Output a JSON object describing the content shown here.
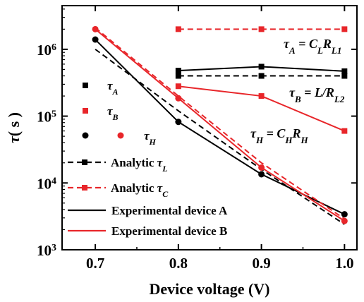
{
  "chart_data": {
    "type": "line",
    "y_scale": "log",
    "x_ticks": [
      "0.7",
      "0.8",
      "0.9",
      "1.0"
    ],
    "y_ticks": [
      {
        "value": 1000,
        "label_base": "10",
        "label_exp": "3"
      },
      {
        "value": 10000,
        "label_base": "10",
        "label_exp": "4"
      },
      {
        "value": 100000,
        "label_base": "10",
        "label_exp": "5"
      },
      {
        "value": 1000000,
        "label_base": "10",
        "label_exp": "6"
      }
    ],
    "xlim": [
      0.66,
      1.015
    ],
    "ylim": [
      1000,
      4500000
    ],
    "xlabel": "Device voltage (V)",
    "ylabel": {
      "symbol": "τ",
      "unit": "( s )"
    },
    "grid": false,
    "colors": {
      "black": "#000000",
      "red": "#e8262a"
    },
    "series": [
      {
        "key": "expA_tauH",
        "color": "black",
        "dash": false,
        "marker": "circle",
        "x": [
          0.7,
          0.8,
          0.9,
          1.0
        ],
        "y": [
          1400000,
          82000,
          13500,
          3400
        ]
      },
      {
        "key": "expB_tauH",
        "color": "red",
        "dash": false,
        "marker": "circle",
        "x": [
          0.7,
          0.8,
          0.9,
          1.0
        ],
        "y": [
          2000000,
          185000,
          17000,
          2700
        ]
      },
      {
        "key": "analytic_tauL",
        "color": "black",
        "dash": true,
        "marker": "none",
        "x": [
          0.7,
          0.8,
          0.9,
          1.0
        ],
        "y": [
          1000000,
          120000,
          16000,
          2400
        ]
      },
      {
        "key": "analytic_tauC",
        "color": "red",
        "dash": true,
        "marker": "none",
        "x": [
          0.7,
          0.8,
          0.9,
          1.0
        ],
        "y": [
          2100000,
          200000,
          20000,
          2900
        ]
      },
      {
        "key": "expA_tauA",
        "color": "black",
        "dash": false,
        "marker": "square",
        "x": [
          0.8,
          0.9,
          1.0
        ],
        "y": [
          480000,
          550000,
          470000
        ]
      },
      {
        "key": "analyticL_tauA",
        "color": "black",
        "dash": true,
        "marker": "square",
        "x": [
          0.8,
          0.9,
          1.0
        ],
        "y": [
          400000,
          400000,
          400000
        ]
      },
      {
        "key": "analyticC_tauA",
        "color": "red",
        "dash": true,
        "marker": "square",
        "x": [
          0.8,
          0.9,
          1.0
        ],
        "y": [
          2000000,
          2000000,
          2000000
        ]
      },
      {
        "key": "expB_tauB",
        "color": "red",
        "dash": false,
        "marker": "square",
        "x": [
          0.8,
          0.9,
          1.0
        ],
        "y": [
          280000,
          200000,
          60000
        ]
      }
    ],
    "legend": {
      "placement": "left",
      "entries": [
        {
          "symbol": "τ",
          "sub": "A",
          "marker": "square",
          "colors": [
            "black"
          ]
        },
        {
          "symbol": "τ",
          "sub": "B",
          "marker": "square",
          "colors": [
            "red"
          ]
        },
        {
          "symbol": "τ",
          "sub": "H",
          "marker": "circle",
          "colors": [
            "black",
            "red"
          ]
        },
        {
          "text": "Analytic",
          "symbol": "τ",
          "sub": "L",
          "line": "dash",
          "marker": "square",
          "colors": [
            "black"
          ]
        },
        {
          "text": "Analytic",
          "symbol": "τ",
          "sub": "C",
          "line": "dash",
          "marker": "square",
          "colors": [
            "red"
          ]
        },
        {
          "text": "Experimental device A",
          "line": "solid",
          "colors": [
            "black"
          ]
        },
        {
          "text": "Experimental device B",
          "line": "solid",
          "colors": [
            "red"
          ]
        }
      ]
    },
    "annotations": [
      {
        "key": "tauA",
        "text": "τ_A = C_L R_L1"
      },
      {
        "key": "tauB",
        "text": "τ_B = L/R_L2"
      },
      {
        "key": "tauH",
        "text": "τ_H = C_H R_H"
      }
    ]
  }
}
